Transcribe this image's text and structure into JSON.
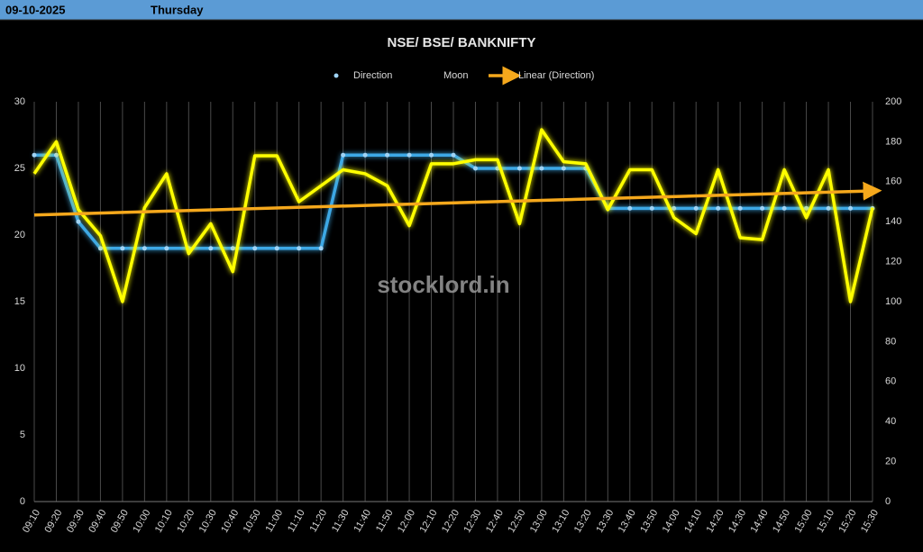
{
  "header": {
    "date": "09-10-2025",
    "day": "Thursday"
  },
  "chart_data": {
    "type": "line",
    "title": "NSE/ BSE/ BANKNIFTY",
    "watermark": "stocklord.in",
    "categories": [
      "09:10",
      "09:20",
      "09:30",
      "09:40",
      "09:50",
      "10:00",
      "10:10",
      "10:20",
      "10:30",
      "10:40",
      "10:50",
      "11:00",
      "11:10",
      "11:20",
      "11:30",
      "11:40",
      "11:50",
      "12:00",
      "12:10",
      "12:20",
      "12:30",
      "12:40",
      "12:50",
      "13:00",
      "13:10",
      "13:20",
      "13:30",
      "13:40",
      "13:50",
      "14:00",
      "14:10",
      "14:20",
      "14:30",
      "14:40",
      "14:50",
      "15:00",
      "15:10",
      "15:20",
      "15:30"
    ],
    "series": [
      {
        "name": "Direction",
        "color": "#3ea8e5",
        "axis": "y",
        "markers": true,
        "values": [
          26,
          26,
          21,
          19,
          19,
          19,
          19,
          19,
          19,
          19,
          19,
          19,
          19,
          19,
          26,
          26,
          26,
          26,
          26,
          26,
          25,
          25,
          25,
          25,
          25,
          25,
          22,
          22,
          22,
          22,
          22,
          22,
          22,
          22,
          22,
          22,
          22,
          22,
          22
        ]
      },
      {
        "name": "Moon",
        "color": "#ffff00",
        "axis": "y2",
        "markers": false,
        "values": [
          164,
          180,
          146,
          133,
          100,
          147,
          164,
          124,
          139,
          115,
          173,
          173,
          150,
          158,
          166,
          164,
          158,
          138,
          169,
          169,
          171,
          171,
          139,
          186,
          170,
          169,
          146,
          166,
          166,
          142,
          134,
          166,
          132,
          131,
          166,
          142,
          166,
          100,
          147
        ]
      }
    ],
    "trendline": {
      "name": "Linear (Direction)",
      "of": 0,
      "kind": "linear",
      "color": "#f5a81c"
    },
    "ylim": [
      0,
      30
    ],
    "yticks": [
      0,
      5,
      10,
      15,
      20,
      25,
      30
    ],
    "y2lim": [
      0,
      200
    ],
    "y2ticks": [
      0,
      20,
      40,
      60,
      80,
      100,
      120,
      140,
      160,
      180,
      200
    ],
    "grid": "vertical"
  }
}
